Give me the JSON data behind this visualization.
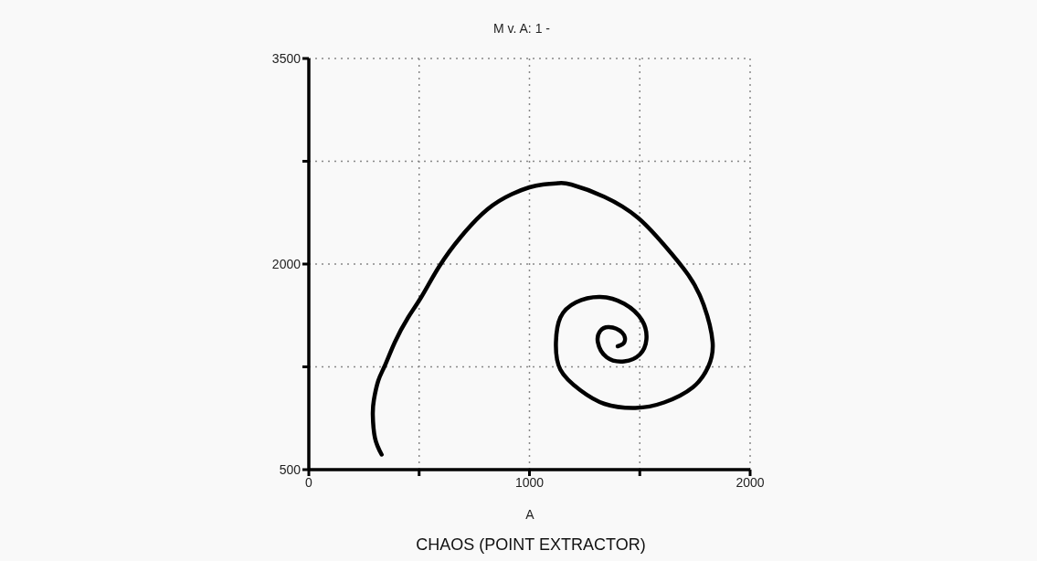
{
  "chart_data": {
    "type": "line",
    "title": "M v. A: 1 -",
    "xlabel": "A",
    "annotations": [
      "CHAOS (POINT EXTRACTOR)"
    ],
    "x": [
      330,
      300,
      290,
      295,
      315,
      345,
      390,
      450,
      510,
      590,
      690,
      810,
      920,
      1000,
      1060,
      1130,
      1190,
      1340,
      1490,
      1610,
      1720,
      1790,
      1830,
      1810,
      1740,
      1610,
      1480,
      1340,
      1230,
      1140,
      1120,
      1140,
      1210,
      1320,
      1430,
      1510,
      1530,
      1500,
      1430,
      1350,
      1310,
      1320,
      1360,
      1420,
      1430,
      1400
    ],
    "values": [
      610,
      730,
      900,
      1010,
      1150,
      1260,
      1430,
      1610,
      1760,
      1980,
      2200,
      2400,
      2510,
      2560,
      2580,
      2590,
      2580,
      2490,
      2340,
      2140,
      1920,
      1700,
      1430,
      1250,
      1100,
      990,
      950,
      980,
      1080,
      1230,
      1430,
      1610,
      1720,
      1760,
      1710,
      1590,
      1450,
      1340,
      1290,
      1320,
      1430,
      1510,
      1540,
      1500,
      1430,
      1400
    ],
    "color": "#000000",
    "marker": "none",
    "line_style": "solid",
    "xlim": [
      0,
      2000
    ],
    "xticks": [
      0,
      {
        "value": 500,
        "label": null
      },
      1000,
      {
        "value": 1500,
        "label": null
      },
      2000
    ],
    "ylim": [
      500,
      3500
    ],
    "yticks": [
      500,
      {
        "value": 1250,
        "label": null
      },
      2000,
      {
        "value": 2750,
        "label": null
      },
      3500
    ],
    "grid": true
  }
}
